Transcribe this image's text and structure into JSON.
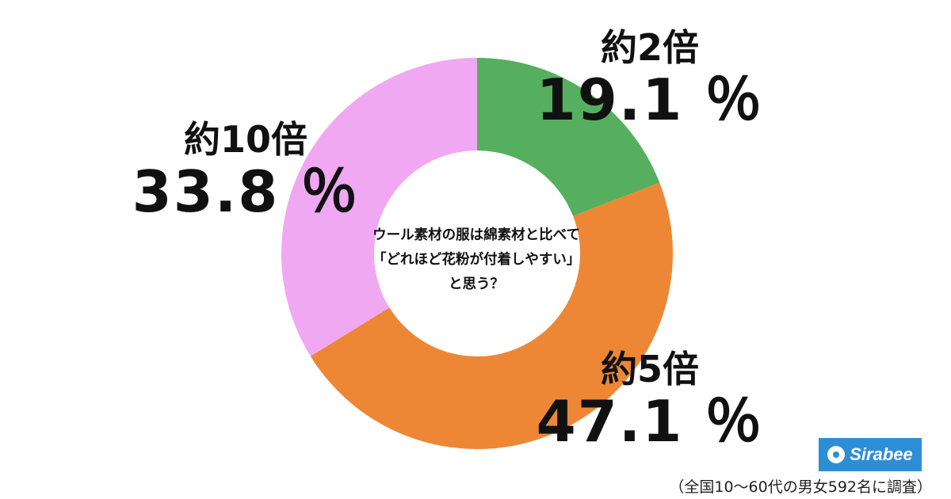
{
  "chart_data": {
    "type": "pie",
    "donut": true,
    "title_lines": [
      "ウール素材の服は綿素材と比べて",
      "「どれほど花粉が付着しやすい」",
      "と思う？"
    ],
    "categories": [
      "約2倍",
      "約5倍",
      "約10倍"
    ],
    "values": [
      19.1,
      47.1,
      33.8
    ],
    "value_labels": [
      "19.1 ％",
      "47.1 ％",
      "33.8 ％"
    ],
    "colors": [
      "#55af5e",
      "#ed8736",
      "#f0a8f3"
    ],
    "start_angle_deg": 0,
    "direction": "clockwise"
  },
  "brand": {
    "logo_text": "Sirabee"
  },
  "footnote": "（全国10〜60代の男女592名に調査）"
}
